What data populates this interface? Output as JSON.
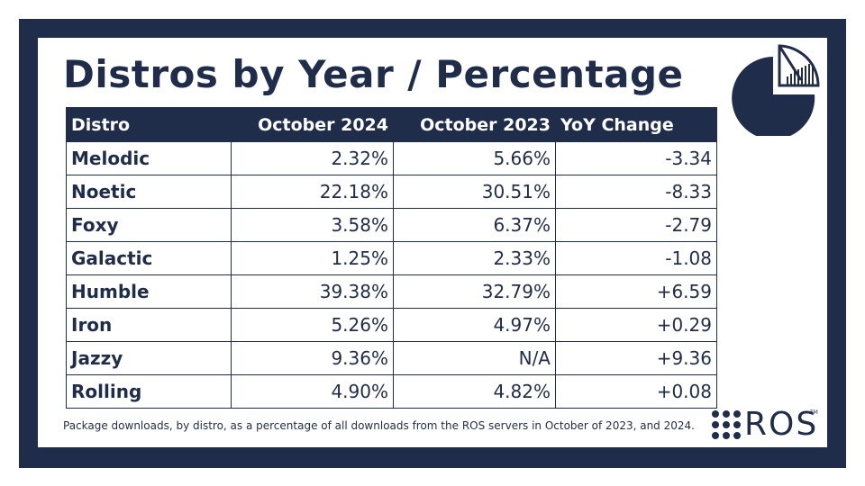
{
  "title": "Distros by Year / Percentage",
  "table": {
    "headers": [
      "Distro",
      "October 2024",
      "October 2023",
      "YoY Change"
    ],
    "rows": [
      {
        "distro": "Melodic",
        "oct2024": "2.32%",
        "oct2023": "5.66%",
        "yoy": "-3.34"
      },
      {
        "distro": "Noetic",
        "oct2024": "22.18%",
        "oct2023": "30.51%",
        "yoy": "-8.33"
      },
      {
        "distro": "Foxy",
        "oct2024": "3.58%",
        "oct2023": "6.37%",
        "yoy": "-2.79"
      },
      {
        "distro": "Galactic",
        "oct2024": "1.25%",
        "oct2023": "2.33%",
        "yoy": "-1.08"
      },
      {
        "distro": "Humble",
        "oct2024": "39.38%",
        "oct2023": "32.79%",
        "yoy": "+6.59"
      },
      {
        "distro": "Iron",
        "oct2024": "5.26%",
        "oct2023": "4.97%",
        "yoy": "+0.29"
      },
      {
        "distro": "Jazzy",
        "oct2024": "9.36%",
        "oct2023": "N/A",
        "yoy": "+9.36"
      },
      {
        "distro": "Rolling",
        "oct2024": "4.90%",
        "oct2023": "4.82%",
        "yoy": "+0.08"
      }
    ]
  },
  "footnote": "Package downloads, by distro, as a percentage of all downloads from the ROS servers in October of 2023, and 2024.",
  "logo": {
    "text": "ROS",
    "tm": "TM"
  },
  "icons": {
    "pie": "pie-chart-icon",
    "ros_dots": "ros-dots-icon"
  },
  "colors": {
    "navy": "#1f2d4a",
    "white": "#ffffff"
  }
}
